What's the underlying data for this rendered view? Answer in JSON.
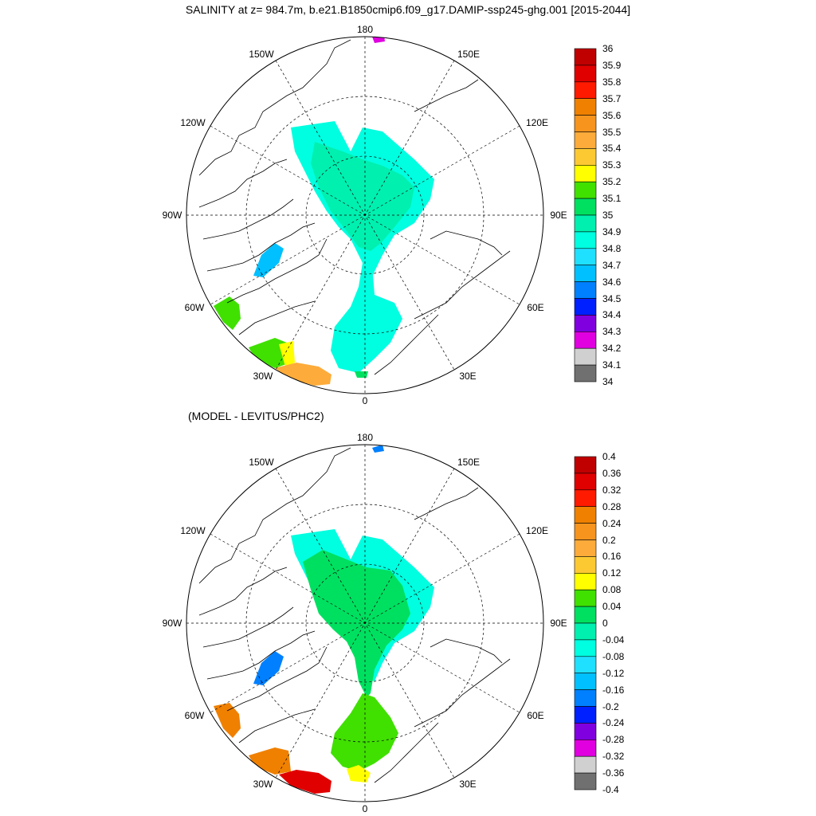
{
  "figure": {
    "title": "SALINITY at z= 984.7m, b.e21.B1850cmip6.f09_g17.DAMIP-ssp245-ghg.001 [2015-2044]",
    "subtitle_bottom": "(MODEL - LEVITUS/PHC2)"
  },
  "panels": [
    {
      "id": "top",
      "longitude_labels": [
        "180",
        "150E",
        "120E",
        "90E",
        "60E",
        "30E",
        "0",
        "30W",
        "60W",
        "90W",
        "120W",
        "150W"
      ],
      "colorbar": {
        "labels": [
          "36",
          "35.9",
          "35.8",
          "35.7",
          "35.6",
          "35.5",
          "35.4",
          "35.3",
          "35.2",
          "35.1",
          "35",
          "34.9",
          "34.8",
          "34.7",
          "34.6",
          "34.5",
          "34.4",
          "34.3",
          "34.2",
          "34.1",
          "34"
        ],
        "colors": [
          "#c00000",
          "#e00000",
          "#ff1a00",
          "#f08000",
          "#f7941d",
          "#fdab3a",
          "#fcc933",
          "#ffff00",
          "#40e000",
          "#00e060",
          "#00f0b0",
          "#00ffe0",
          "#20e0ff",
          "#00c0ff",
          "#0080ff",
          "#0020ff",
          "#8000e0",
          "#e000e0",
          "#d0d0d0",
          "#707070"
        ]
      }
    },
    {
      "id": "bottom",
      "longitude_labels": [
        "180",
        "150E",
        "120E",
        "90E",
        "60E",
        "30E",
        "0",
        "30W",
        "60W",
        "90W",
        "120W",
        "150W"
      ],
      "colorbar": {
        "labels": [
          "0.4",
          "0.36",
          "0.32",
          "0.28",
          "0.24",
          "0.2",
          "0.16",
          "0.12",
          "0.08",
          "0.04",
          "0",
          "-0.04",
          "-0.08",
          "-0.12",
          "-0.16",
          "-0.2",
          "-0.24",
          "-0.28",
          "-0.32",
          "-0.36",
          "-0.4"
        ],
        "colors": [
          "#c00000",
          "#e00000",
          "#ff1a00",
          "#f08000",
          "#f7941d",
          "#fdab3a",
          "#fcc933",
          "#ffff00",
          "#40e000",
          "#00e060",
          "#00f0b0",
          "#00ffe0",
          "#20e0ff",
          "#00c0ff",
          "#0080ff",
          "#0020ff",
          "#8000e0",
          "#e000e0",
          "#d0d0d0",
          "#707070"
        ]
      }
    }
  ]
}
